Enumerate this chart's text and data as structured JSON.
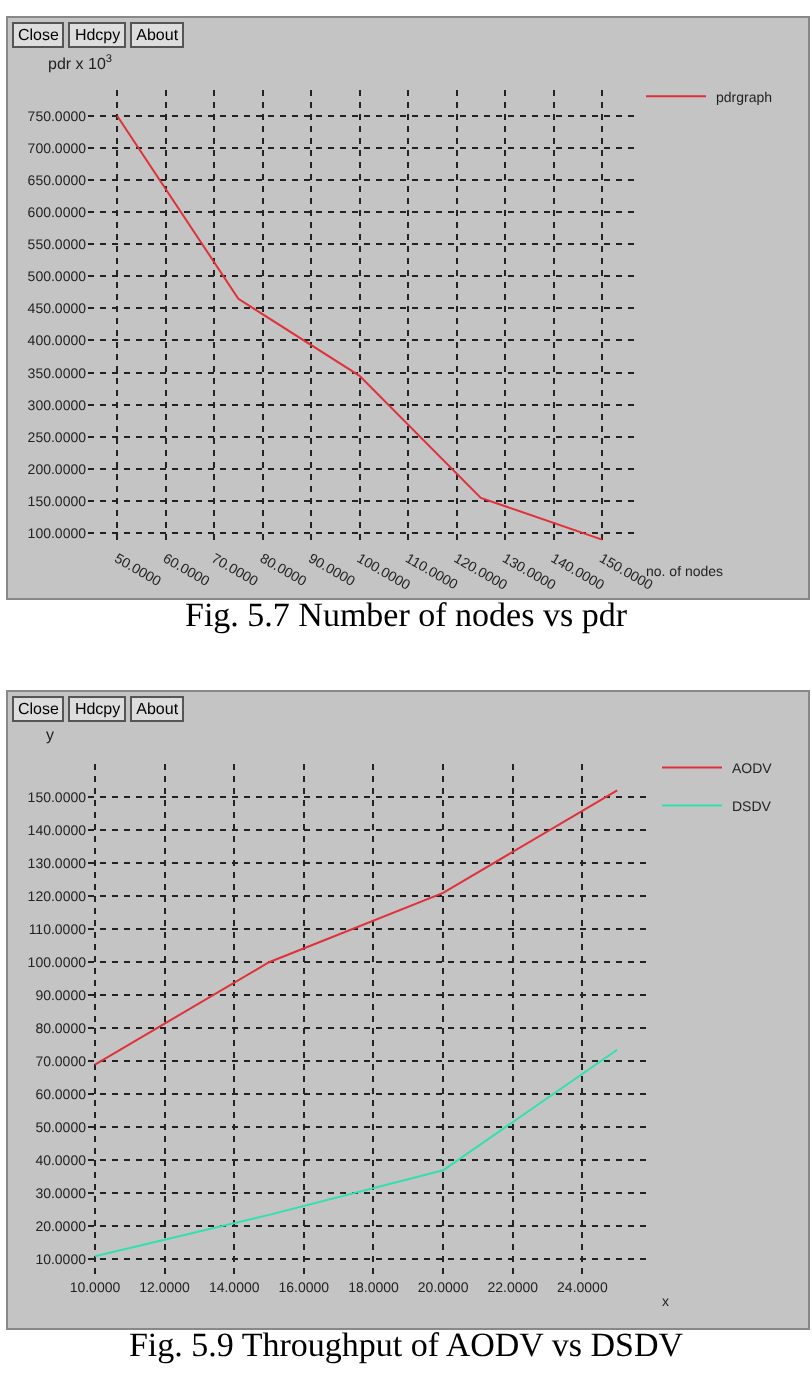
{
  "chart_data": [
    {
      "type": "line",
      "ylabel": "pdr x 10$^{3}$",
      "xlabel": "no. of nodes",
      "annotations": [
        "Fig. 5.7 Number of nodes vs pdr",
        "Close",
        "Hdcpy",
        "About"
      ],
      "x": [
        50,
        75,
        100,
        125,
        150
      ],
      "series": [
        {
          "name": "pdrgraph",
          "color": "#e0303a",
          "values": [
            750,
            465,
            345,
            155,
            90
          ]
        }
      ],
      "xlim": [
        44,
        157
      ],
      "ylim": [
        80,
        790
      ],
      "xticks": [
        {
          "value": 50,
          "label": "50.0000"
        },
        {
          "value": 60,
          "label": "60.0000"
        },
        {
          "value": 70,
          "label": "70.0000"
        },
        {
          "value": 80,
          "label": "80.0000"
        },
        {
          "value": 90,
          "label": "90.0000"
        },
        {
          "value": 100,
          "label": "100.0000"
        },
        {
          "value": 110,
          "label": "110.0000"
        },
        {
          "value": 120,
          "label": "120.0000"
        },
        {
          "value": 130,
          "label": "130.0000"
        },
        {
          "value": 140,
          "label": "140.0000"
        },
        {
          "value": 150,
          "label": "150.0000"
        }
      ],
      "yticks": [
        {
          "value": 100,
          "label": "100.0000"
        },
        {
          "value": 150,
          "label": "150.0000"
        },
        {
          "value": 200,
          "label": "200.0000"
        },
        {
          "value": 250,
          "label": "250.0000"
        },
        {
          "value": 300,
          "label": "300.0000"
        },
        {
          "value": 350,
          "label": "350.0000"
        },
        {
          "value": 400,
          "label": "400.0000"
        },
        {
          "value": 450,
          "label": "450.0000"
        },
        {
          "value": 500,
          "label": "500.0000"
        },
        {
          "value": 550,
          "label": "550.0000"
        },
        {
          "value": 600,
          "label": "600.0000"
        },
        {
          "value": 650,
          "label": "650.0000"
        },
        {
          "value": 700,
          "label": "700.0000"
        },
        {
          "value": 750,
          "label": "750.0000"
        }
      ],
      "grid": true,
      "legend": "top right",
      "marker": "none",
      "line_style": "solid"
    },
    {
      "type": "line",
      "ylabel": "y",
      "xlabel": "x",
      "annotations": [
        "Fig. 5.9 Throughput of AODV vs DSDV",
        "Close",
        "Hdcpy",
        "About"
      ],
      "x": [
        10,
        15,
        20,
        25
      ],
      "series": [
        {
          "name": "AODV",
          "color": "#e0303a",
          "values": [
            69,
            100,
            121,
            152
          ]
        },
        {
          "name": "DSDV",
          "color": "#30e0b0",
          "values": [
            11,
            23.5,
            37,
            73.5
          ]
        }
      ],
      "xlim": [
        9.8,
        26
      ],
      "ylim": [
        5,
        160
      ],
      "xticks": [
        {
          "value": 10,
          "label": "10.0000"
        },
        {
          "value": 12,
          "label": "12.0000"
        },
        {
          "value": 14,
          "label": "14.0000"
        },
        {
          "value": 16,
          "label": "16.0000"
        },
        {
          "value": 18,
          "label": "18.0000"
        },
        {
          "value": 20,
          "label": "20.0000"
        },
        {
          "value": 22,
          "label": "22.0000"
        },
        {
          "value": 24,
          "label": "24.0000"
        }
      ],
      "yticks": [
        {
          "value": 10,
          "label": "10.0000"
        },
        {
          "value": 20,
          "label": "20.0000"
        },
        {
          "value": 30,
          "label": "30.0000"
        },
        {
          "value": 40,
          "label": "40.0000"
        },
        {
          "value": 50,
          "label": "50.0000"
        },
        {
          "value": 60,
          "label": "60.0000"
        },
        {
          "value": 70,
          "label": "70.0000"
        },
        {
          "value": 80,
          "label": "80.0000"
        },
        {
          "value": 90,
          "label": "90.0000"
        },
        {
          "value": 100,
          "label": "100.0000"
        },
        {
          "value": 110,
          "label": "110.0000"
        },
        {
          "value": 120,
          "label": "120.0000"
        },
        {
          "value": 130,
          "label": "130.0000"
        },
        {
          "value": 140,
          "label": "140.0000"
        },
        {
          "value": 150,
          "label": "150.0000"
        }
      ],
      "grid": true,
      "legend": "top right",
      "marker": "none",
      "line_style": "solid"
    }
  ]
}
